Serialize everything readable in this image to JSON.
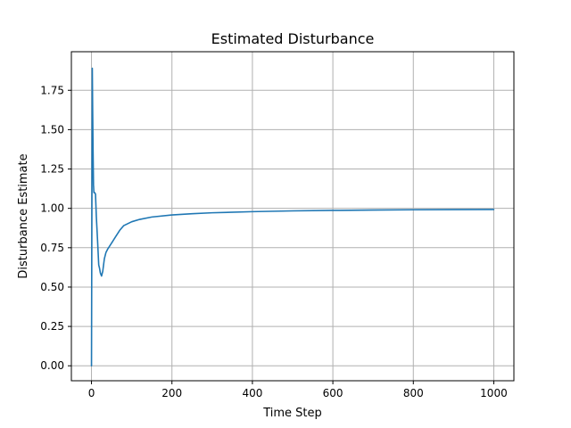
{
  "chart_data": {
    "type": "line",
    "title": "Estimated Disturbance",
    "xlabel": "Time Step",
    "ylabel": "Disturbance Estimate",
    "xlim": [
      -50,
      1050
    ],
    "ylim": [
      -0.095,
      1.995
    ],
    "xticks": [
      0,
      200,
      400,
      600,
      800,
      1000
    ],
    "xtick_labels": [
      "0",
      "200",
      "400",
      "600",
      "800",
      "1000"
    ],
    "yticks": [
      0.0,
      0.25,
      0.5,
      0.75,
      1.0,
      1.25,
      1.5,
      1.75
    ],
    "ytick_labels": [
      "0.00",
      "0.25",
      "0.50",
      "0.75",
      "1.00",
      "1.25",
      "1.50",
      "1.75"
    ],
    "grid": true,
    "series": [
      {
        "color": "#1f77b4",
        "x": [
          0,
          1,
          2,
          3,
          4,
          5,
          6,
          8,
          10,
          12,
          15,
          18,
          20,
          22,
          25,
          28,
          32,
          36,
          40,
          50,
          60,
          70,
          80,
          100,
          120,
          150,
          200,
          250,
          300,
          400,
          500,
          600,
          700,
          800,
          900,
          1000
        ],
        "y": [
          0.0,
          1.0,
          1.89,
          1.6,
          1.35,
          1.15,
          1.1,
          1.1,
          1.09,
          0.95,
          0.8,
          0.64,
          0.62,
          0.59,
          0.57,
          0.6,
          0.68,
          0.72,
          0.74,
          0.78,
          0.82,
          0.86,
          0.89,
          0.915,
          0.93,
          0.945,
          0.958,
          0.966,
          0.972,
          0.979,
          0.984,
          0.987,
          0.989,
          0.991,
          0.992,
          0.993
        ]
      }
    ]
  }
}
